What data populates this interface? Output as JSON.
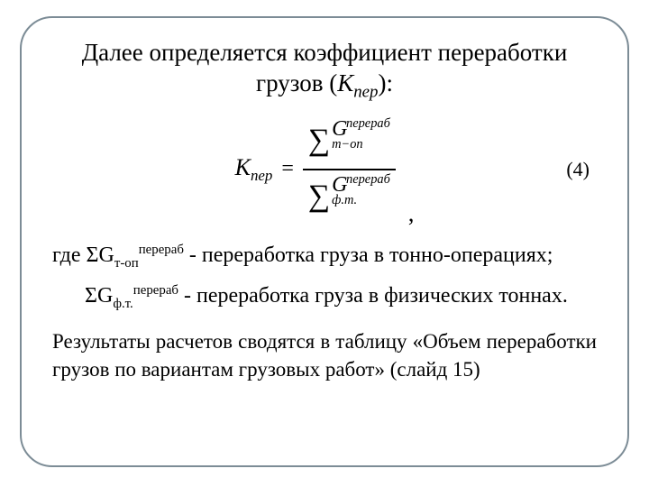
{
  "title_line1": "Далее определяется коэффициент переработки",
  "title_line2_pre": "грузов (",
  "title_line2_sym": "К",
  "title_line2_sub": "пер",
  "title_line2_post": "):",
  "formula": {
    "lhs_K": "К",
    "lhs_sub": "пер",
    "eq": "=",
    "sigma": "∑",
    "G": "G",
    "num_sub": "т−оп",
    "num_sup": "перераб",
    "den_sub": "ф.т.",
    "den_sup": "перераб",
    "comma": ",",
    "eqnum": "(4)"
  },
  "where": {
    "prefix": "где ",
    "t1_S": "Σ",
    "t1_G": "G",
    "t1_sub": "т-оп",
    "t1_sup": "перераб",
    "t1_desc": " - переработка груза в тонно-операциях;",
    "t2_S": "Σ",
    "t2_G": "G",
    "t2_sub": "ф.т.",
    "t2_sup": "перераб",
    "t2_desc": " - переработка груза в физических тоннах."
  },
  "body": "Результаты расчетов сводятся в таблицу «Объем переработки грузов по вариантам грузовых работ» (слайд 15)"
}
